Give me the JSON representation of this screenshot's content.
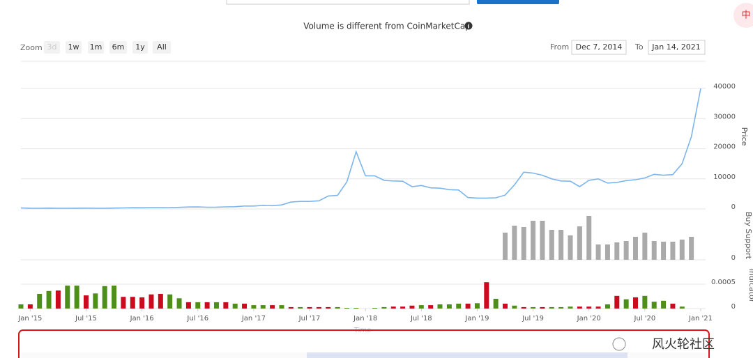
{
  "ui": {
    "badge": "中",
    "notice": "Volume is different from CoinMarketCap",
    "zoom": {
      "label": "Zoom",
      "buttons": [
        "3d",
        "1w",
        "1m",
        "6m",
        "1y",
        "All"
      ]
    },
    "range": {
      "from_label": "From",
      "from": "Dec 7, 2014",
      "to_label": "To",
      "to": "Jan 14, 2021"
    },
    "watermark": "风火轮社区"
  },
  "chart_data": [
    {
      "type": "line",
      "ylabel": "Price",
      "color": "#7cb5ec",
      "xlim": [
        "2014-12",
        "2021-01"
      ],
      "ylim": [
        0,
        40000
      ],
      "yticks": [
        0,
        10000,
        20000,
        30000,
        40000
      ],
      "grid": true,
      "x": [
        "2014-12",
        "2015-01",
        "2015-02",
        "2015-03",
        "2015-04",
        "2015-05",
        "2015-06",
        "2015-07",
        "2015-08",
        "2015-09",
        "2015-10",
        "2015-11",
        "2015-12",
        "2016-01",
        "2016-02",
        "2016-03",
        "2016-04",
        "2016-05",
        "2016-06",
        "2016-07",
        "2016-08",
        "2016-09",
        "2016-10",
        "2016-11",
        "2016-12",
        "2017-01",
        "2017-02",
        "2017-03",
        "2017-04",
        "2017-05",
        "2017-06",
        "2017-07",
        "2017-08",
        "2017-09",
        "2017-10",
        "2017-11",
        "2017-12",
        "2018-01",
        "2018-02",
        "2018-03",
        "2018-04",
        "2018-05",
        "2018-06",
        "2018-07",
        "2018-08",
        "2018-09",
        "2018-10",
        "2018-11",
        "2018-12",
        "2019-01",
        "2019-02",
        "2019-03",
        "2019-04",
        "2019-05",
        "2019-06",
        "2019-07",
        "2019-08",
        "2019-09",
        "2019-10",
        "2019-11",
        "2019-12",
        "2020-01",
        "2020-02",
        "2020-03",
        "2020-04",
        "2020-05",
        "2020-06",
        "2020-07",
        "2020-08",
        "2020-09",
        "2020-10",
        "2020-11",
        "2020-12",
        "2021-01"
      ],
      "values": [
        350,
        250,
        240,
        270,
        240,
        240,
        250,
        280,
        230,
        235,
        300,
        350,
        420,
        400,
        420,
        420,
        450,
        530,
        650,
        670,
        580,
        610,
        700,
        740,
        960,
        970,
        1190,
        1080,
        1350,
        2300,
        2500,
        2500,
        2700,
        4300,
        4500,
        9000,
        19000,
        11000,
        11000,
        9500,
        9300,
        9200,
        7400,
        7800,
        7000,
        6900,
        6400,
        6300,
        3800,
        3600,
        3600,
        3700,
        4600,
        8000,
        12200,
        11900,
        11200,
        10000,
        9300,
        9200,
        7400,
        9500,
        10000,
        8600,
        8800,
        9400,
        9700,
        10300,
        11500,
        11200,
        11400,
        15000,
        24000,
        40000
      ]
    },
    {
      "type": "bar",
      "ylabel": "Buy Support",
      "color": "#aaaaaa",
      "xlim": [
        "2014-12",
        "2021-01"
      ],
      "ylim": [
        0,
        70
      ],
      "yticks": [
        0
      ],
      "x": [
        "2019-04",
        "2019-05",
        "2019-06",
        "2019-07",
        "2019-08",
        "2019-09",
        "2019-10",
        "2019-11",
        "2019-12",
        "2020-01",
        "2020-02",
        "2020-03",
        "2020-04",
        "2020-05",
        "2020-06",
        "2020-07",
        "2020-08",
        "2020-09",
        "2020-10",
        "2020-11",
        "2020-12"
      ],
      "values": [
        39,
        49,
        47,
        56,
        56,
        43,
        43,
        35,
        48,
        63,
        22,
        22,
        25,
        27,
        33,
        39,
        27,
        26,
        26,
        29,
        33
      ]
    },
    {
      "type": "bar",
      "ylabel": "Indicator",
      "xlabel": "Time",
      "xlim": [
        "2014-12",
        "2021-01"
      ],
      "ylim": [
        0,
        0.0007
      ],
      "yticks": [
        0,
        0.0005
      ],
      "grid": true,
      "xticks": [
        {
          "value": "2015-01",
          "label": "Jan '15"
        },
        {
          "value": "2015-07",
          "label": "Jul '15"
        },
        {
          "value": "2016-01",
          "label": "Jan '16"
        },
        {
          "value": "2016-07",
          "label": "Jul '16"
        },
        {
          "value": "2017-01",
          "label": "Jan '17"
        },
        {
          "value": "2017-07",
          "label": "Jul '17"
        },
        {
          "value": "2018-01",
          "label": "Jan '18"
        },
        {
          "value": "2018-07",
          "label": "Jul '18"
        },
        {
          "value": "2019-01",
          "label": "Jan '19"
        },
        {
          "value": "2019-07",
          "label": "Jul '19"
        },
        {
          "value": "2020-01",
          "label": "Jan '20"
        },
        {
          "value": "2020-07",
          "label": "Jul '20"
        },
        {
          "value": "2021-01",
          "label": "Jan '21"
        }
      ],
      "x": [
        "2014-12",
        "2015-01",
        "2015-02",
        "2015-03",
        "2015-04",
        "2015-05",
        "2015-06",
        "2015-07",
        "2015-08",
        "2015-09",
        "2015-10",
        "2015-11",
        "2015-12",
        "2016-01",
        "2016-02",
        "2016-03",
        "2016-04",
        "2016-05",
        "2016-06",
        "2016-07",
        "2016-08",
        "2016-09",
        "2016-10",
        "2016-11",
        "2016-12",
        "2017-01",
        "2017-02",
        "2017-03",
        "2017-04",
        "2017-05",
        "2017-06",
        "2017-07",
        "2017-08",
        "2017-09",
        "2017-10",
        "2017-11",
        "2017-12",
        "2018-01",
        "2018-02",
        "2018-03",
        "2018-04",
        "2018-05",
        "2018-06",
        "2018-07",
        "2018-08",
        "2018-09",
        "2018-10",
        "2018-11",
        "2018-12",
        "2019-01",
        "2019-02",
        "2019-03",
        "2019-04",
        "2019-05",
        "2019-06",
        "2019-07",
        "2019-08",
        "2019-09",
        "2019-10",
        "2019-11",
        "2019-12",
        "2020-01",
        "2020-02",
        "2020-03",
        "2020-04",
        "2020-05",
        "2020-06",
        "2020-07",
        "2020-08",
        "2020-09",
        "2020-10",
        "2020-11"
      ],
      "values": [
        8.6e-05,
        8.6e-05,
        0.0003,
        0.00036,
        0.00037,
        0.00047,
        0.00047,
        0.00027,
        0.00031,
        0.00046,
        0.00047,
        0.00024,
        0.00024,
        0.00023,
        0.00029,
        0.0003,
        0.00029,
        0.00021,
        0.00013,
        0.00013,
        0.00013,
        0.00013,
        0.00013,
        0.0001,
        0.0001,
        7e-05,
        7e-05,
        7e-05,
        7e-05,
        3e-05,
        3e-05,
        3e-05,
        3e-05,
        3e-05,
        3e-05,
        1.4e-05,
        1.4e-05,
        0,
        1.4e-05,
        3e-05,
        4e-05,
        4e-05,
        6e-05,
        7e-05,
        7e-05,
        8.6e-05,
        8.6e-05,
        0.0001,
        0.0001,
        0.00011,
        0.00054,
        0.0002,
        0.0001,
        6e-05,
        3e-05,
        3e-05,
        3e-05,
        3e-05,
        3e-05,
        4e-05,
        4e-05,
        4e-05,
        4e-05,
        8.6e-05,
        0.00026,
        0.00019,
        0.00023,
        0.00026,
        0.00014,
        0.00016,
        0.0001,
        4e-05
      ],
      "colors": [
        "#4e8f1a",
        "#cc0a1e",
        "#4e8f1a",
        "#4e8f1a",
        "#cc0a1e",
        "#4e8f1a",
        "#4e8f1a",
        "#cc0a1e",
        "#4e8f1a",
        "#4e8f1a",
        "#4e8f1a",
        "#cc0a1e",
        "#cc0a1e",
        "#cc0a1e",
        "#cc0a1e",
        "#cc0a1e",
        "#4e8f1a",
        "#4e8f1a",
        "#cc0a1e",
        "#4e8f1a",
        "#cc0a1e",
        "#4e8f1a",
        "#cc0a1e",
        "#4e8f1a",
        "#cc0a1e",
        "#4e8f1a",
        "#4e8f1a",
        "#cc0a1e",
        "#4e8f1a",
        "#cc0a1e",
        "#4e8f1a",
        "#cc0a1e",
        "#cc0a1e",
        "#cc0a1e",
        "#4e8f1a",
        "#4e8f1a",
        "#4e8f1a",
        "#4e8f1a",
        "#4e8f1a",
        "#4e8f1a",
        "#cc0a1e",
        "#cc0a1e",
        "#cc0a1e",
        "#4e8f1a",
        "#cc0a1e",
        "#4e8f1a",
        "#4e8f1a",
        "#4e8f1a",
        "#cc0a1e",
        "#4e8f1a",
        "#cc0a1e",
        "#4e8f1a",
        "#cc0a1e",
        "#4e8f1a",
        "#cc0a1e",
        "#4e8f1a",
        "#cc0a1e",
        "#4e8f1a",
        "#4e8f1a",
        "#4e8f1a",
        "#cc0a1e",
        "#cc0a1e",
        "#cc0a1e",
        "#4e8f1a",
        "#cc0a1e",
        "#4e8f1a",
        "#cc0a1e",
        "#4e8f1a",
        "#4e8f1a",
        "#4e8f1a",
        "#cc0a1e",
        "#4e8f1a"
      ]
    }
  ]
}
